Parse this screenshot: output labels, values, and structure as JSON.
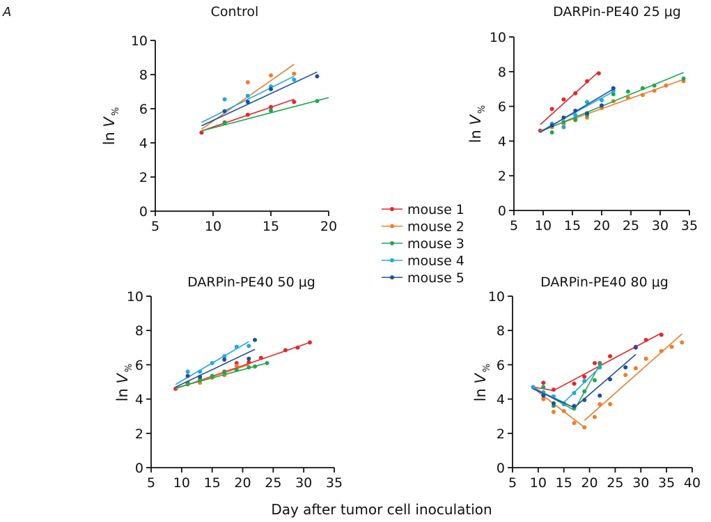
{
  "figure": {
    "panel_letter": "A",
    "xlabel": "Day after tumor cell inoculation"
  },
  "legend": [
    {
      "name": "mouse 1",
      "color": "#e8262a"
    },
    {
      "name": "mouse 2",
      "color": "#f47b2a"
    },
    {
      "name": "mouse 3",
      "color": "#1fa84f"
    },
    {
      "name": "mouse 4",
      "color": "#1fa8df"
    },
    {
      "name": "mouse 5",
      "color": "#1d4f9c"
    }
  ],
  "chart_data": [
    {
      "type": "scatter",
      "title": "Control",
      "ylabel": "ln V",
      "ylabel_subscript": "%",
      "xlim": [
        5,
        20
      ],
      "ylim": [
        0,
        10
      ],
      "xticks": [
        5,
        10,
        15,
        20
      ],
      "yticks": [
        0,
        2,
        4,
        6,
        8,
        10
      ],
      "series": [
        {
          "name": "mouse 1",
          "color": "#e8262a",
          "points": [
            [
              9,
              4.6
            ],
            [
              11,
              5.2
            ],
            [
              13,
              5.65
            ],
            [
              15,
              6.1
            ],
            [
              17,
              6.4
            ]
          ],
          "fit": [
            [
              9,
              4.7
            ],
            [
              17,
              6.55
            ]
          ]
        },
        {
          "name": "mouse 2",
          "color": "#f47b2a",
          "points": [
            [
              13,
              7.55
            ],
            [
              15,
              7.95
            ],
            [
              17,
              8.05
            ]
          ],
          "fit": [
            [
              9,
              4.8
            ],
            [
              17,
              8.6
            ]
          ]
        },
        {
          "name": "mouse 3",
          "color": "#1fa84f",
          "points": [
            [
              11,
              5.15
            ],
            [
              15,
              5.9
            ],
            [
              19,
              6.45
            ]
          ],
          "fit": [
            [
              9,
              4.7
            ],
            [
              20,
              6.65
            ]
          ]
        },
        {
          "name": "mouse 4",
          "color": "#1fa8df",
          "points": [
            [
              11,
              6.55
            ],
            [
              13,
              6.75
            ],
            [
              15,
              7.3
            ],
            [
              17,
              7.7
            ]
          ],
          "fit": [
            [
              9,
              5.2
            ],
            [
              17,
              7.9
            ]
          ]
        },
        {
          "name": "mouse 5",
          "color": "#1d4f9c",
          "points": [
            [
              11,
              5.85
            ],
            [
              13,
              6.4
            ],
            [
              15,
              7.15
            ],
            [
              19,
              7.9
            ]
          ],
          "fit": [
            [
              9,
              5.0
            ],
            [
              19,
              8.15
            ]
          ]
        }
      ]
    },
    {
      "type": "scatter",
      "title": "DARPin-PE40 25 μg",
      "ylabel": "ln V",
      "ylabel_subscript": "%",
      "xlim": [
        5,
        35
      ],
      "ylim": [
        0,
        10
      ],
      "xticks": [
        5,
        10,
        15,
        20,
        25,
        30,
        35
      ],
      "yticks": [
        0,
        2,
        4,
        6,
        8,
        10
      ],
      "series": [
        {
          "name": "mouse 1",
          "color": "#e8262a",
          "points": [
            [
              9.5,
              4.6
            ],
            [
              11.5,
              5.85
            ],
            [
              13.5,
              6.4
            ],
            [
              15.5,
              6.75
            ],
            [
              17.5,
              7.45
            ],
            [
              19.5,
              7.9
            ]
          ],
          "fit": [
            [
              9.5,
              4.95
            ],
            [
              19.5,
              8.0
            ]
          ]
        },
        {
          "name": "mouse 2",
          "color": "#f47b2a",
          "points": [
            [
              11.5,
              4.8
            ],
            [
              13.5,
              5.0
            ],
            [
              15.5,
              5.2
            ],
            [
              17.5,
              5.35
            ],
            [
              20,
              5.9
            ],
            [
              22,
              6.3
            ],
            [
              24.5,
              6.5
            ],
            [
              27,
              6.65
            ],
            [
              29,
              6.9
            ],
            [
              31,
              7.2
            ],
            [
              34,
              7.45
            ]
          ],
          "fit": [
            [
              9.5,
              4.6
            ],
            [
              34,
              7.55
            ]
          ]
        },
        {
          "name": "mouse 3",
          "color": "#1fa84f",
          "points": [
            [
              11.5,
              4.5
            ],
            [
              13.5,
              5.1
            ],
            [
              15.5,
              5.25
            ],
            [
              17.5,
              5.5
            ],
            [
              20,
              6.05
            ],
            [
              22,
              6.7
            ],
            [
              24.5,
              6.85
            ],
            [
              27,
              7.05
            ],
            [
              29,
              7.2
            ],
            [
              34,
              7.6
            ]
          ],
          "fit": [
            [
              9.5,
              4.55
            ],
            [
              34,
              7.95
            ]
          ]
        },
        {
          "name": "mouse 4",
          "color": "#1fa8df",
          "points": [
            [
              11.5,
              5.0
            ],
            [
              13.5,
              4.8
            ],
            [
              15.5,
              5.5
            ],
            [
              17.5,
              6.25
            ],
            [
              20,
              6.35
            ],
            [
              22,
              6.9
            ]
          ],
          "fit": [
            [
              9.5,
              4.55
            ],
            [
              22,
              6.85
            ]
          ]
        },
        {
          "name": "mouse 5",
          "color": "#1d4f9c",
          "points": [
            [
              11.5,
              4.9
            ],
            [
              13.5,
              5.35
            ],
            [
              15.5,
              5.75
            ],
            [
              17.5,
              5.6
            ],
            [
              20,
              6.05
            ],
            [
              22,
              7.05
            ]
          ],
          "fit": [
            [
              9.5,
              4.5
            ],
            [
              22,
              7.0
            ]
          ]
        }
      ]
    },
    {
      "type": "scatter",
      "title": "DARPin-PE40 50 μg",
      "ylabel": "ln V",
      "ylabel_subscript": "%",
      "xlim": [
        5,
        35
      ],
      "ylim": [
        0,
        10
      ],
      "xticks": [
        5,
        10,
        15,
        20,
        25,
        30,
        35
      ],
      "yticks": [
        0,
        2,
        4,
        6,
        8,
        10
      ],
      "series": [
        {
          "name": "mouse 1",
          "color": "#e8262a",
          "points": [
            [
              9,
              4.6
            ],
            [
              11,
              4.95
            ],
            [
              13,
              5.15
            ],
            [
              15,
              5.3
            ],
            [
              17,
              5.6
            ],
            [
              19,
              6.1
            ],
            [
              21,
              6.15
            ],
            [
              23,
              6.4
            ],
            [
              27,
              6.85
            ],
            [
              29,
              7.0
            ],
            [
              31,
              7.3
            ]
          ],
          "fit": [
            [
              9,
              4.6
            ],
            [
              31,
              7.3
            ]
          ]
        },
        {
          "name": "mouse 2",
          "color": "#f47b2a",
          "points": [
            [
              11,
              4.85
            ],
            [
              13,
              4.95
            ],
            [
              15,
              5.25
            ],
            [
              17,
              5.4
            ],
            [
              19,
              5.95
            ]
          ],
          "fit": [
            [
              9,
              4.6
            ],
            [
              21,
              6.0
            ]
          ]
        },
        {
          "name": "mouse 3",
          "color": "#1fa84f",
          "points": [
            [
              11,
              4.9
            ],
            [
              13,
              5.1
            ],
            [
              15,
              5.35
            ],
            [
              17,
              5.55
            ],
            [
              19,
              5.7
            ],
            [
              21,
              5.85
            ],
            [
              22,
              5.9
            ],
            [
              24,
              6.1
            ]
          ],
          "fit": [
            [
              9,
              4.65
            ],
            [
              24,
              6.1
            ]
          ]
        },
        {
          "name": "mouse 4",
          "color": "#1fa8df",
          "points": [
            [
              11,
              5.6
            ],
            [
              13,
              5.6
            ],
            [
              15,
              6.1
            ],
            [
              17,
              6.5
            ],
            [
              19,
              7.05
            ],
            [
              21,
              7.1
            ]
          ],
          "fit": [
            [
              9,
              4.85
            ],
            [
              21,
              7.35
            ]
          ]
        },
        {
          "name": "mouse 5",
          "color": "#1d4f9c",
          "points": [
            [
              11,
              5.35
            ],
            [
              13,
              5.3
            ],
            [
              17,
              6.3
            ],
            [
              21,
              6.35
            ],
            [
              22,
              7.45
            ]
          ],
          "fit": [
            [
              9,
              4.7
            ],
            [
              22,
              6.9
            ]
          ]
        }
      ]
    },
    {
      "type": "scatter",
      "title": "DARPin-PE40 80 μg",
      "ylabel": "ln V",
      "ylabel_subscript": "%",
      "xlim": [
        5,
        40
      ],
      "ylim": [
        0,
        10
      ],
      "xticks": [
        5,
        10,
        15,
        20,
        25,
        30,
        35,
        40
      ],
      "yticks": [
        0,
        2,
        4,
        6,
        8,
        10
      ],
      "series": [
        {
          "name": "mouse 1",
          "color": "#e8262a",
          "points": [
            [
              9,
              4.7
            ],
            [
              11,
              4.95
            ],
            [
              13,
              4.55
            ],
            [
              17,
              4.9
            ],
            [
              19,
              5.3
            ],
            [
              21,
              6.1
            ],
            [
              22,
              6.1
            ],
            [
              24,
              6.5
            ],
            [
              29,
              7.05
            ],
            [
              31,
              7.45
            ],
            [
              34,
              7.75
            ]
          ],
          "fit": [
            [
              [
                9,
                4.7
              ],
              [
                13,
                4.5
              ]
            ],
            [
              [
                13,
                4.5
              ],
              [
                34,
                7.85
              ]
            ]
          ]
        },
        {
          "name": "mouse 2",
          "color": "#f47b2a",
          "points": [
            [
              9,
              4.7
            ],
            [
              11,
              4.0
            ],
            [
              13,
              3.25
            ],
            [
              15,
              3.3
            ],
            [
              17,
              2.6
            ],
            [
              19,
              2.35
            ],
            [
              21,
              2.95
            ],
            [
              22,
              3.7
            ],
            [
              24,
              3.7
            ],
            [
              27,
              5.4
            ],
            [
              29,
              5.8
            ],
            [
              31,
              6.35
            ],
            [
              34,
              6.8
            ],
            [
              36,
              7.05
            ],
            [
              38,
              7.3
            ]
          ],
          "fit": [
            [
              [
                9,
                4.65
              ],
              [
                19,
                2.35
              ]
            ],
            [
              [
                19,
                2.75
              ],
              [
                38,
                7.8
              ]
            ]
          ]
        },
        {
          "name": "mouse 3",
          "color": "#1fa84f",
          "points": [
            [
              11,
              4.7
            ],
            [
              13,
              3.6
            ],
            [
              15,
              3.7
            ],
            [
              17,
              3.45
            ],
            [
              19,
              4.45
            ],
            [
              21,
              5.1
            ],
            [
              22,
              6.05
            ]
          ],
          "fit": [
            [
              [
                9,
                4.7
              ],
              [
                17,
                3.35
              ]
            ],
            [
              [
                17,
                3.35
              ],
              [
                22,
                6.0
              ]
            ]
          ]
        },
        {
          "name": "mouse 4",
          "color": "#1fa8df",
          "points": [
            [
              9,
              4.7
            ],
            [
              11,
              4.4
            ],
            [
              13,
              4.15
            ],
            [
              15,
              3.75
            ],
            [
              17,
              4.35
            ],
            [
              19,
              5.05
            ],
            [
              22,
              5.85
            ]
          ],
          "fit": [
            [
              [
                9,
                4.65
              ],
              [
                15,
                3.8
              ]
            ],
            [
              [
                15,
                3.8
              ],
              [
                22,
                5.85
              ]
            ]
          ]
        },
        {
          "name": "mouse 5",
          "color": "#1d4f9c",
          "points": [
            [
              11,
              4.2
            ],
            [
              13,
              3.75
            ],
            [
              17,
              3.6
            ],
            [
              19,
              3.95
            ],
            [
              22,
              4.2
            ],
            [
              24,
              5.15
            ],
            [
              27,
              5.85
            ],
            [
              29,
              7.0
            ]
          ],
          "fit": [
            [
              [
                9,
                4.6
              ],
              [
                17,
                3.5
              ]
            ],
            [
              [
                17,
                3.5
              ],
              [
                29,
                6.6
              ]
            ]
          ]
        }
      ]
    }
  ]
}
